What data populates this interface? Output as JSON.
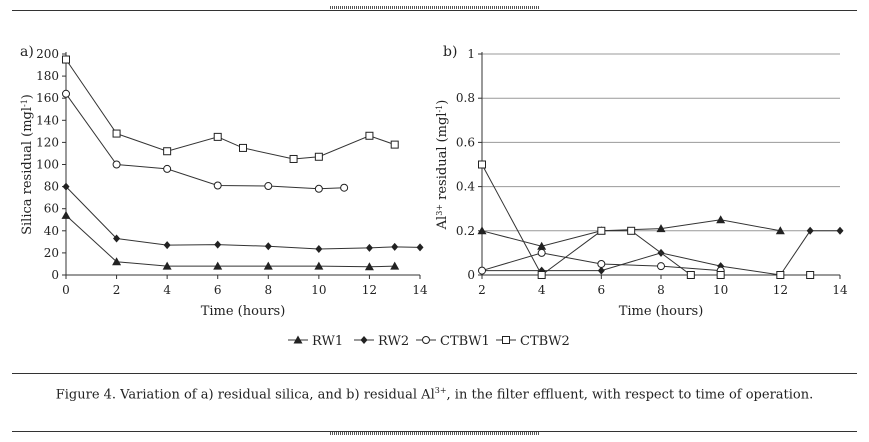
{
  "chart_data": [
    {
      "panel_label": "a)",
      "type": "line",
      "xlabel": "Time (hours)",
      "ylabel": "Silica residual (mgl",
      "ylabel_sup": "-1",
      "ylabel_tail": ")",
      "xlim": [
        0,
        14
      ],
      "ylim": [
        0,
        200
      ],
      "xticks": [
        0,
        2,
        4,
        6,
        8,
        10,
        12,
        14
      ],
      "yticks": [
        0,
        20,
        40,
        60,
        80,
        100,
        120,
        140,
        160,
        180,
        200
      ],
      "grid": false,
      "series": [
        {
          "name": "RW1",
          "marker": "triangle",
          "x": [
            0,
            2,
            4,
            6,
            8,
            10,
            12,
            13
          ],
          "y": [
            54,
            12,
            8,
            8,
            8,
            8,
            7.5,
            8
          ]
        },
        {
          "name": "RW2",
          "marker": "diamond",
          "x": [
            0,
            2,
            4,
            6,
            8,
            10,
            12,
            13,
            14
          ],
          "y": [
            80,
            33,
            27,
            27.5,
            26,
            23.5,
            24.5,
            25.5,
            25
          ]
        },
        {
          "name": "CTBW1",
          "marker": "circle",
          "x": [
            0,
            2,
            4,
            6,
            8,
            10,
            11
          ],
          "y": [
            164,
            100,
            96,
            81,
            80.5,
            78,
            79
          ]
        },
        {
          "name": "CTBW2",
          "marker": "square",
          "x": [
            0,
            2,
            4,
            6,
            7,
            9,
            10,
            12,
            13
          ],
          "y": [
            195,
            128,
            112,
            125,
            115,
            105,
            107,
            126,
            118
          ]
        }
      ]
    },
    {
      "panel_label": "b)",
      "type": "line",
      "xlabel": "Time (hours)",
      "ylabel": "Al",
      "ylabel_sup": "3+",
      "ylabel_tail": " residual (mgl",
      "ylabel_sup2": "-1",
      "ylabel_tail2": ")",
      "xlim": [
        2,
        14
      ],
      "ylim": [
        0,
        1
      ],
      "xticks": [
        2,
        4,
        6,
        8,
        10,
        12,
        14
      ],
      "yticks": [
        0,
        0.2,
        0.4,
        0.6,
        0.8,
        1
      ],
      "ytick_labels": [
        "0",
        "0.2",
        "0.4",
        "0.6",
        "0.8",
        "1"
      ],
      "grid": true,
      "series": [
        {
          "name": "RW1",
          "marker": "triangle",
          "x": [
            2,
            4,
            6,
            8,
            10,
            12
          ],
          "y": [
            0.2,
            0.13,
            0.2,
            0.21,
            0.25,
            0.2
          ]
        },
        {
          "name": "RW2",
          "marker": "diamond",
          "x": [
            2,
            4,
            6,
            8,
            10,
            12,
            13,
            14
          ],
          "y": [
            0.02,
            0.02,
            0.02,
            0.1,
            0.04,
            0,
            0.2,
            0.2
          ]
        },
        {
          "name": "CTBW1",
          "marker": "circle",
          "x": [
            2,
            4,
            6,
            8,
            10
          ],
          "y": [
            0.02,
            0.1,
            0.05,
            0.04,
            0.02
          ]
        },
        {
          "name": "CTBW2",
          "marker": "square",
          "x": [
            2,
            4,
            6,
            7,
            9,
            10,
            12,
            13
          ],
          "y": [
            0.5,
            0,
            0.2,
            0.2,
            0,
            0,
            0,
            0
          ]
        }
      ]
    }
  ],
  "legend": [
    "RW1",
    "RW2",
    "CTBW1",
    "CTBW2"
  ],
  "caption": {
    "prefix": "Figure 4. Variation of a) residual silica, and b) residual Al",
    "sup": "3+",
    "suffix": ", in the filter effluent, with respect to time of operation."
  }
}
